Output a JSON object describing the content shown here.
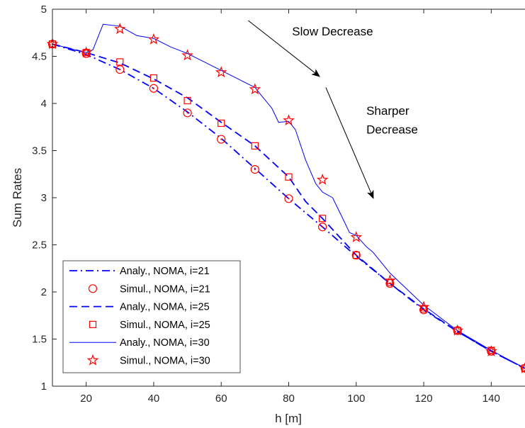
{
  "chart_data": {
    "type": "line",
    "xlabel": "h [m]",
    "ylabel": "Sum Rates",
    "xlim": [
      10,
      150
    ],
    "ylim": [
      1,
      5
    ],
    "xticks": [
      20,
      40,
      60,
      80,
      100,
      120,
      140
    ],
    "yticks": [
      1,
      1.5,
      2,
      2.5,
      3,
      3.5,
      4,
      4.5,
      5
    ],
    "xtick_labels": [
      "20",
      "40",
      "60",
      "80",
      "100",
      "120",
      "140"
    ],
    "ytick_labels": [
      "1",
      "1.5",
      "2",
      "2.5",
      "3",
      "3.5",
      "4",
      "4.5",
      "5"
    ],
    "grid": false,
    "legend_position": "bottom-left",
    "series": [
      {
        "name": "Analy., NOMA, i=21",
        "style": "dashdot",
        "marker": "none",
        "color": "#0000ff",
        "x": [
          10,
          20,
          30,
          40,
          50,
          60,
          70,
          80,
          90,
          100,
          110,
          120,
          130,
          140,
          150
        ],
        "y": [
          4.63,
          4.52,
          4.36,
          4.16,
          3.91,
          3.63,
          3.31,
          2.99,
          2.69,
          2.38,
          2.09,
          1.81,
          1.58,
          1.37,
          1.19
        ]
      },
      {
        "name": "Simul., NOMA, i=21",
        "style": "none",
        "marker": "circle",
        "color": "#ff0000",
        "x": [
          10,
          20,
          30,
          40,
          50,
          60,
          70,
          80,
          90,
          100,
          110,
          120,
          130,
          140,
          150
        ],
        "y": [
          4.63,
          4.53,
          4.36,
          4.16,
          3.9,
          3.62,
          3.3,
          2.99,
          2.69,
          2.39,
          2.09,
          1.81,
          1.59,
          1.37,
          1.19
        ]
      },
      {
        "name": "Analy., NOMA, i=25",
        "style": "dashed",
        "marker": "none",
        "color": "#0000ff",
        "x": [
          10,
          20,
          30,
          40,
          50,
          60,
          70,
          80,
          85,
          90,
          100,
          110,
          120,
          130,
          140,
          150
        ],
        "y": [
          4.63,
          4.54,
          4.43,
          4.26,
          4.06,
          3.8,
          3.55,
          3.22,
          2.96,
          2.78,
          2.39,
          2.09,
          1.82,
          1.58,
          1.37,
          1.19
        ]
      },
      {
        "name": "Simul., NOMA, i=25",
        "style": "none",
        "marker": "square",
        "color": "#ff0000",
        "x": [
          10,
          20,
          30,
          40,
          50,
          60,
          70,
          80,
          90,
          100,
          110,
          120,
          130,
          140,
          150
        ],
        "y": [
          4.63,
          4.54,
          4.44,
          4.27,
          4.03,
          3.79,
          3.55,
          3.22,
          2.78,
          2.39,
          2.1,
          1.82,
          1.59,
          1.38,
          1.19
        ]
      },
      {
        "name": "Analy., NOMA, i=30",
        "style": "solid",
        "marker": "none",
        "color": "#0000ff",
        "x": [
          10,
          20,
          22,
          25,
          30,
          35,
          40,
          45,
          50,
          55,
          60,
          65,
          70,
          72,
          75,
          77,
          80,
          82,
          85,
          88,
          90,
          93,
          96,
          98,
          100,
          103,
          105,
          110,
          120,
          130,
          140,
          150
        ],
        "y": [
          4.63,
          4.54,
          4.57,
          4.84,
          4.82,
          4.72,
          4.69,
          4.6,
          4.53,
          4.44,
          4.35,
          4.26,
          4.17,
          4.08,
          3.95,
          3.8,
          3.81,
          3.72,
          3.4,
          3.15,
          3.06,
          3.0,
          2.78,
          2.63,
          2.6,
          2.48,
          2.42,
          2.2,
          1.86,
          1.59,
          1.38,
          1.19
        ]
      },
      {
        "name": "Simul., NOMA, i=30",
        "style": "none",
        "marker": "star",
        "color": "#ff0000",
        "x": [
          10,
          20,
          30,
          40,
          50,
          60,
          70,
          80,
          90,
          100,
          110,
          120,
          130,
          140,
          150
        ],
        "y": [
          4.63,
          4.54,
          4.79,
          4.68,
          4.51,
          4.33,
          4.15,
          3.82,
          3.19,
          2.58,
          2.12,
          1.84,
          1.59,
          1.37,
          1.19
        ]
      }
    ],
    "annotations": [
      {
        "text": "Slow Decrease",
        "x": 81,
        "y": 4.72
      },
      {
        "text": "Sharper",
        "x": 103,
        "y": 3.88
      },
      {
        "text": "Decrease",
        "x": 103,
        "y": 3.68
      }
    ],
    "arrows": [
      {
        "from": [
          68,
          4.88
        ],
        "to": [
          89,
          4.29
        ]
      },
      {
        "from": [
          91,
          4.17
        ],
        "to": [
          105,
          3.0
        ]
      }
    ]
  }
}
